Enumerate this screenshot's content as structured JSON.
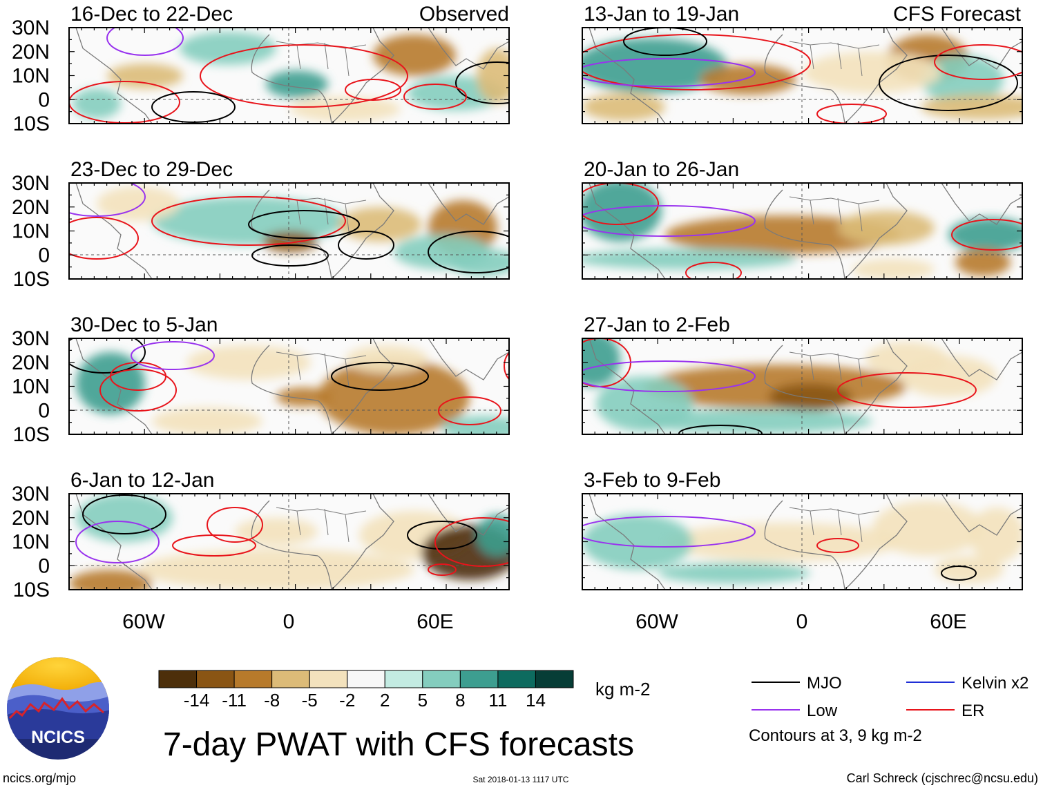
{
  "observed_label": "Observed",
  "forecast_label": "CFS Forecast",
  "panels": [
    {
      "title": "16-Dec to 22-Dec",
      "column": "observed"
    },
    {
      "title": "23-Dec to 29-Dec",
      "column": "observed"
    },
    {
      "title": "30-Dec to 5-Jan",
      "column": "observed"
    },
    {
      "title": "6-Jan to 12-Jan",
      "column": "observed"
    },
    {
      "title": "13-Jan to 19-Jan",
      "column": "forecast"
    },
    {
      "title": "20-Jan to 26-Jan",
      "column": "forecast"
    },
    {
      "title": "27-Jan to 2-Feb",
      "column": "forecast"
    },
    {
      "title": "3-Feb to 9-Feb",
      "column": "forecast"
    }
  ],
  "lat_ticks": [
    "30N",
    "20N",
    "10N",
    "0",
    "10S"
  ],
  "lon_ticks": [
    "60W",
    "0",
    "60E"
  ],
  "colorbar": {
    "colors": [
      "#4d2f0a",
      "#8a5514",
      "#b77a2b",
      "#dcbb78",
      "#f3e2bd",
      "#f7f7f7",
      "#c3ebe2",
      "#84cdbe",
      "#3d9e90",
      "#0d6b5f",
      "#063d36"
    ],
    "labels": [
      "-14",
      "-11",
      "-8",
      "-5",
      "-2",
      "2",
      "5",
      "8",
      "11",
      "14"
    ],
    "unit": "kg m-2"
  },
  "legend": {
    "items": [
      {
        "label": "MJO",
        "color": "#000000"
      },
      {
        "label": "Low",
        "color": "#9933ee"
      },
      {
        "label": "Kelvin x2",
        "color": "#1f2fd6"
      },
      {
        "label": "ER",
        "color": "#e8141b"
      }
    ],
    "contours_note": "Contours at 3, 9 kg m-2"
  },
  "title": "7-day PWAT with CFS forecasts",
  "logo_text": "NCICS",
  "footer": {
    "url": "ncics.org/mjo",
    "timestamp": "Sat 2018-01-13 1117 UTC",
    "credit": "Carl Schreck (cjschrec@ncsu.edu)"
  }
}
